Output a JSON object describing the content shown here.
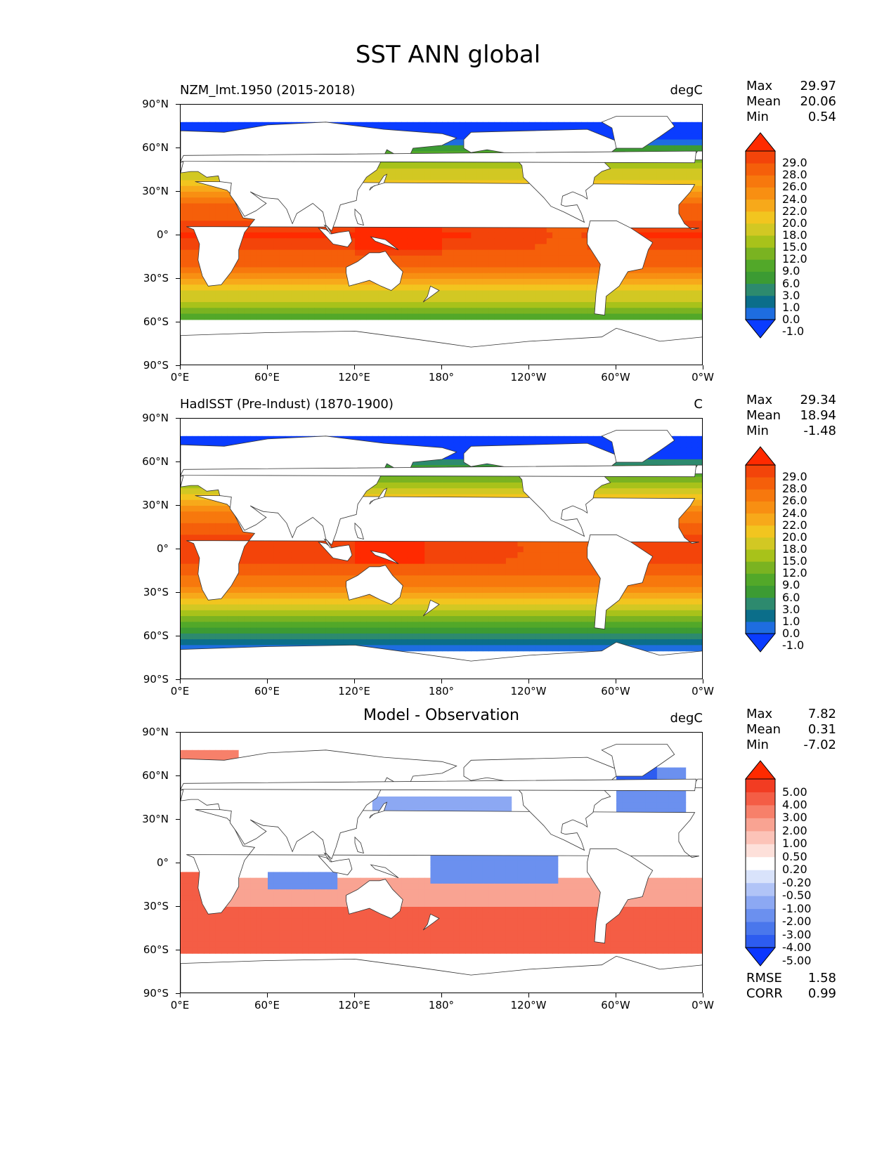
{
  "figure": {
    "title": "SST ANN global"
  },
  "axes": {
    "lat_labels": [
      "90°N",
      "60°N",
      "30°N",
      "0°",
      "30°S",
      "60°S",
      "90°S"
    ],
    "lon_labels": [
      "0°E",
      "60°E",
      "120°E",
      "180°",
      "120°W",
      "60°W",
      "0°W"
    ]
  },
  "panels": [
    {
      "title": "NZM_lmt.1950 (2015-2018)",
      "units": "degC",
      "stats": {
        "max_label": "Max",
        "max": "29.97",
        "mean_label": "Mean",
        "mean": "20.06",
        "min_label": "Min",
        "min": "0.54"
      },
      "colorbar_ticks": [
        "29.0",
        "28.0",
        "26.0",
        "24.0",
        "22.0",
        "20.0",
        "18.0",
        "15.0",
        "12.0",
        "9.0",
        "6.0",
        "3.0",
        "1.0",
        "0.0",
        "-1.0"
      ]
    },
    {
      "title": "HadISST (Pre-Indust) (1870-1900)",
      "units": "C",
      "stats": {
        "max_label": "Max",
        "max": "29.34",
        "mean_label": "Mean",
        "mean": "18.94",
        "min_label": "Min",
        "min": "-1.48"
      },
      "colorbar_ticks": [
        "29.0",
        "28.0",
        "26.0",
        "24.0",
        "22.0",
        "20.0",
        "18.0",
        "15.0",
        "12.0",
        "9.0",
        "6.0",
        "3.0",
        "1.0",
        "0.0",
        "-1.0"
      ]
    },
    {
      "title": "Model - Observation",
      "units": "degC",
      "stats": {
        "max_label": "Max",
        "max": "7.82",
        "mean_label": "Mean",
        "mean": "0.31",
        "min_label": "Min",
        "min": "-7.02"
      },
      "colorbar_ticks": [
        "5.00",
        "4.00",
        "3.00",
        "2.00",
        "1.00",
        "0.50",
        "0.20",
        "-0.20",
        "-0.50",
        "-1.00",
        "-2.00",
        "-3.00",
        "-4.00",
        "-5.00"
      ],
      "extra": {
        "rmse_label": "RMSE",
        "rmse": "1.58",
        "corr_label": "CORR",
        "corr": "0.99"
      }
    }
  ],
  "colors": {
    "sst": [
      "#0a3cff",
      "#1e6de0",
      "#0b6e8a",
      "#2d8a6e",
      "#3c9b33",
      "#52a829",
      "#7ab321",
      "#a8c21a",
      "#d2c823",
      "#f2c51f",
      "#f7a91a",
      "#f88f12",
      "#f7780d",
      "#f55f0a",
      "#f3440a",
      "#ff2a00"
    ],
    "diff": [
      "#0a36ff",
      "#2d5cf0",
      "#4a77ec",
      "#6b90ef",
      "#8ca8f3",
      "#b1c4f7",
      "#d9e3fb",
      "#ffffff",
      "#fde0da",
      "#fcc3b8",
      "#f9a392",
      "#f7806a",
      "#f45d45",
      "#f23c22",
      "#ff2a00"
    ],
    "land": "#ffffff",
    "coast": "#333333"
  }
}
